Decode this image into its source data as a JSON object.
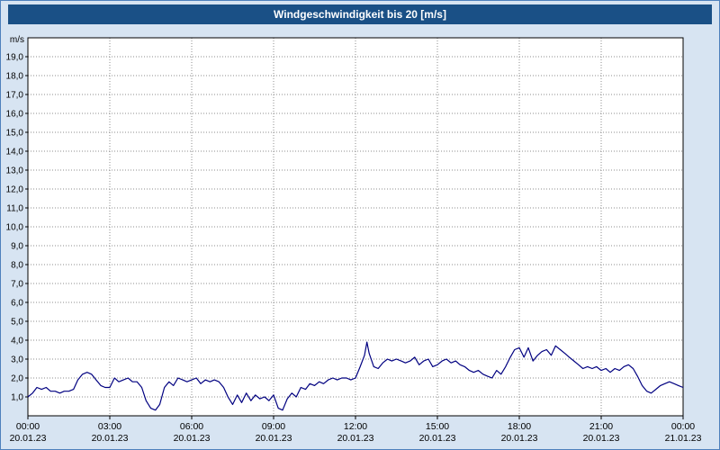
{
  "title": "Windgeschwindigkeit bis 20 [m/s]",
  "colors": {
    "titlebar_bg": "#1a5086",
    "titlebar_text": "#ffffff",
    "frame_bg": "#d7e4f2",
    "plot_bg": "#ffffff",
    "grid": "#8c8c8c",
    "line": "#000080"
  },
  "chart_data": {
    "type": "line",
    "title": "Windgeschwindigkeit bis 20 [m/s]",
    "xlabel": "",
    "ylabel": "m/s",
    "ylim": [
      0,
      20
    ],
    "xlim": [
      0,
      24
    ],
    "grid": true,
    "legend": false,
    "line_color": "#000080",
    "ytick_labels": [
      "1,0",
      "2,0",
      "3,0",
      "4,0",
      "5,0",
      "6,0",
      "7,0",
      "8,0",
      "9,0",
      "10,0",
      "11,0",
      "12,0",
      "13,0",
      "14,0",
      "15,0",
      "16,0",
      "17,0",
      "18,0",
      "19,0"
    ],
    "xticks": [
      {
        "h": 0,
        "time": "00:00",
        "date": "20.01.23"
      },
      {
        "h": 3,
        "time": "03:00",
        "date": "20.01.23"
      },
      {
        "h": 6,
        "time": "06:00",
        "date": "20.01.23"
      },
      {
        "h": 9,
        "time": "09:00",
        "date": "20.01.23"
      },
      {
        "h": 12,
        "time": "12:00",
        "date": "20.01.23"
      },
      {
        "h": 15,
        "time": "15:00",
        "date": "20.01.23"
      },
      {
        "h": 18,
        "time": "18:00",
        "date": "20.01.23"
      },
      {
        "h": 21,
        "time": "21:00",
        "date": "20.01.23"
      },
      {
        "h": 24,
        "time": "00:00",
        "date": "21.01.23"
      }
    ],
    "points": [
      [
        0.0,
        1.0
      ],
      [
        0.17,
        1.2
      ],
      [
        0.33,
        1.5
      ],
      [
        0.5,
        1.4
      ],
      [
        0.67,
        1.5
      ],
      [
        0.83,
        1.3
      ],
      [
        1.0,
        1.3
      ],
      [
        1.17,
        1.2
      ],
      [
        1.33,
        1.3
      ],
      [
        1.5,
        1.3
      ],
      [
        1.67,
        1.4
      ],
      [
        1.83,
        1.9
      ],
      [
        2.0,
        2.2
      ],
      [
        2.17,
        2.3
      ],
      [
        2.33,
        2.2
      ],
      [
        2.5,
        1.9
      ],
      [
        2.67,
        1.6
      ],
      [
        2.83,
        1.5
      ],
      [
        3.0,
        1.5
      ],
      [
        3.17,
        2.0
      ],
      [
        3.33,
        1.8
      ],
      [
        3.5,
        1.9
      ],
      [
        3.67,
        2.0
      ],
      [
        3.83,
        1.8
      ],
      [
        4.0,
        1.8
      ],
      [
        4.17,
        1.5
      ],
      [
        4.33,
        0.8
      ],
      [
        4.5,
        0.4
      ],
      [
        4.67,
        0.3
      ],
      [
        4.83,
        0.6
      ],
      [
        5.0,
        1.5
      ],
      [
        5.17,
        1.8
      ],
      [
        5.33,
        1.6
      ],
      [
        5.5,
        2.0
      ],
      [
        5.67,
        1.9
      ],
      [
        5.83,
        1.8
      ],
      [
        6.0,
        1.9
      ],
      [
        6.17,
        2.0
      ],
      [
        6.33,
        1.7
      ],
      [
        6.5,
        1.9
      ],
      [
        6.67,
        1.8
      ],
      [
        6.83,
        1.9
      ],
      [
        7.0,
        1.8
      ],
      [
        7.17,
        1.5
      ],
      [
        7.33,
        1.0
      ],
      [
        7.5,
        0.6
      ],
      [
        7.67,
        1.1
      ],
      [
        7.83,
        0.7
      ],
      [
        8.0,
        1.2
      ],
      [
        8.17,
        0.8
      ],
      [
        8.33,
        1.1
      ],
      [
        8.5,
        0.9
      ],
      [
        8.67,
        1.0
      ],
      [
        8.83,
        0.8
      ],
      [
        9.0,
        1.1
      ],
      [
        9.17,
        0.4
      ],
      [
        9.33,
        0.3
      ],
      [
        9.5,
        0.9
      ],
      [
        9.67,
        1.2
      ],
      [
        9.83,
        1.0
      ],
      [
        10.0,
        1.5
      ],
      [
        10.17,
        1.4
      ],
      [
        10.33,
        1.7
      ],
      [
        10.5,
        1.6
      ],
      [
        10.67,
        1.8
      ],
      [
        10.83,
        1.7
      ],
      [
        11.0,
        1.9
      ],
      [
        11.17,
        2.0
      ],
      [
        11.33,
        1.9
      ],
      [
        11.5,
        2.0
      ],
      [
        11.67,
        2.0
      ],
      [
        11.83,
        1.9
      ],
      [
        12.0,
        2.0
      ],
      [
        12.17,
        2.6
      ],
      [
        12.33,
        3.2
      ],
      [
        12.42,
        3.9
      ],
      [
        12.5,
        3.3
      ],
      [
        12.67,
        2.6
      ],
      [
        12.83,
        2.5
      ],
      [
        13.0,
        2.8
      ],
      [
        13.17,
        3.0
      ],
      [
        13.33,
        2.9
      ],
      [
        13.5,
        3.0
      ],
      [
        13.67,
        2.9
      ],
      [
        13.83,
        2.8
      ],
      [
        14.0,
        2.9
      ],
      [
        14.17,
        3.1
      ],
      [
        14.33,
        2.7
      ],
      [
        14.5,
        2.9
      ],
      [
        14.67,
        3.0
      ],
      [
        14.83,
        2.6
      ],
      [
        15.0,
        2.7
      ],
      [
        15.17,
        2.9
      ],
      [
        15.33,
        3.0
      ],
      [
        15.5,
        2.8
      ],
      [
        15.67,
        2.9
      ],
      [
        15.83,
        2.7
      ],
      [
        16.0,
        2.6
      ],
      [
        16.17,
        2.4
      ],
      [
        16.33,
        2.3
      ],
      [
        16.5,
        2.4
      ],
      [
        16.67,
        2.2
      ],
      [
        16.83,
        2.1
      ],
      [
        17.0,
        2.0
      ],
      [
        17.17,
        2.4
      ],
      [
        17.33,
        2.2
      ],
      [
        17.5,
        2.6
      ],
      [
        17.67,
        3.1
      ],
      [
        17.83,
        3.5
      ],
      [
        18.0,
        3.6
      ],
      [
        18.17,
        3.1
      ],
      [
        18.33,
        3.6
      ],
      [
        18.5,
        2.9
      ],
      [
        18.67,
        3.2
      ],
      [
        18.83,
        3.4
      ],
      [
        19.0,
        3.5
      ],
      [
        19.17,
        3.2
      ],
      [
        19.33,
        3.7
      ],
      [
        19.5,
        3.5
      ],
      [
        19.67,
        3.3
      ],
      [
        19.83,
        3.1
      ],
      [
        20.0,
        2.9
      ],
      [
        20.17,
        2.7
      ],
      [
        20.33,
        2.5
      ],
      [
        20.5,
        2.6
      ],
      [
        20.67,
        2.5
      ],
      [
        20.83,
        2.6
      ],
      [
        21.0,
        2.4
      ],
      [
        21.17,
        2.5
      ],
      [
        21.33,
        2.3
      ],
      [
        21.5,
        2.5
      ],
      [
        21.67,
        2.4
      ],
      [
        21.83,
        2.6
      ],
      [
        22.0,
        2.7
      ],
      [
        22.17,
        2.5
      ],
      [
        22.33,
        2.1
      ],
      [
        22.5,
        1.6
      ],
      [
        22.67,
        1.3
      ],
      [
        22.83,
        1.2
      ],
      [
        23.0,
        1.4
      ],
      [
        23.17,
        1.6
      ],
      [
        23.33,
        1.7
      ],
      [
        23.5,
        1.8
      ],
      [
        23.67,
        1.7
      ],
      [
        23.83,
        1.6
      ],
      [
        24.0,
        1.5
      ]
    ]
  }
}
